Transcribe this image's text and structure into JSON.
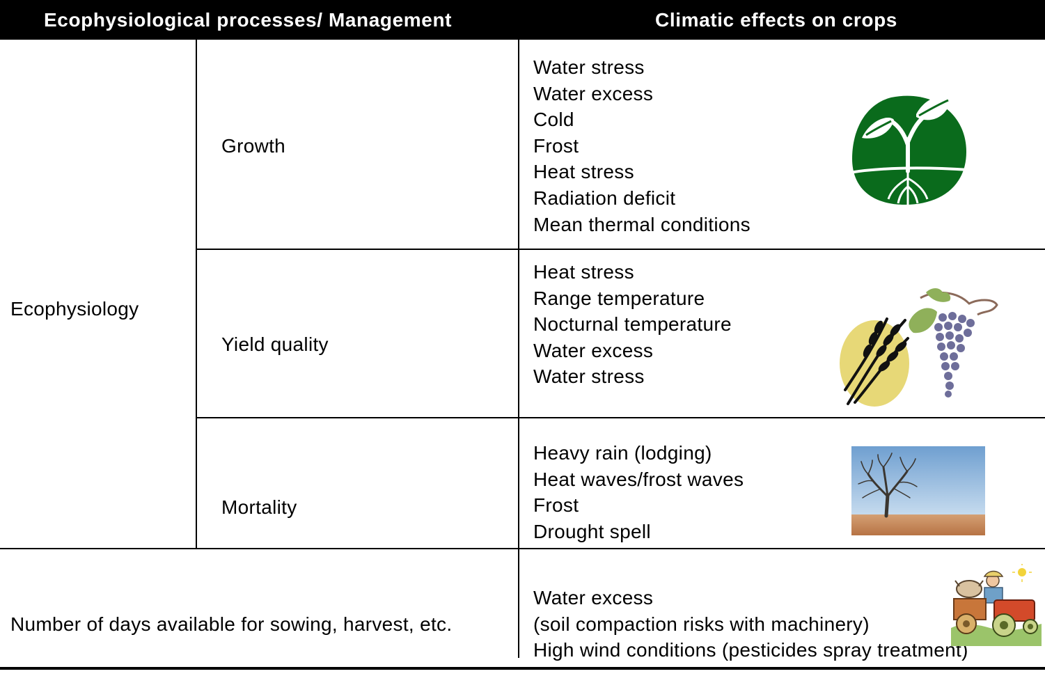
{
  "header": {
    "left": "Ecophysiological processes/ Management",
    "right": "Climatic effects on crops"
  },
  "rows": {
    "category": "Ecophysiology",
    "growth": {
      "label": "Growth",
      "effects": [
        "Water stress",
        "Water excess",
        "Cold",
        "Frost",
        "Heat stress",
        "Radiation deficit",
        "Mean thermal conditions"
      ],
      "icon": "seedling-icon"
    },
    "yield_quality": {
      "label": "Yield quality",
      "effects": [
        "Heat stress",
        "Range temperature",
        "Nocturnal temperature",
        "Water excess",
        "Water stress"
      ],
      "icon": "wheat-and-grapes-icon"
    },
    "mortality": {
      "label": "Mortality",
      "effects": [
        "Heavy rain (lodging)",
        "Heat waves/frost waves",
        "Frost",
        "Drought spell"
      ],
      "icon": "dead-tree-photo"
    },
    "management": {
      "label": "Number of days available for sowing, harvest, etc.",
      "effects": [
        "Water excess",
        "(soil compaction risks with machinery)",
        "High wind conditions (pesticides spray treatment)"
      ],
      "icon": "farmer-tractor-illustration"
    }
  },
  "colors": {
    "header_bg": "#000000",
    "seedling_green": "#0a6b1c",
    "grain_yellow": "#e7d877",
    "grape_purple": "#6e6e9a",
    "leaf_green": "#8fb05a",
    "sky_blue": "#8fb6dc",
    "soil_brown": "#c98a55"
  }
}
